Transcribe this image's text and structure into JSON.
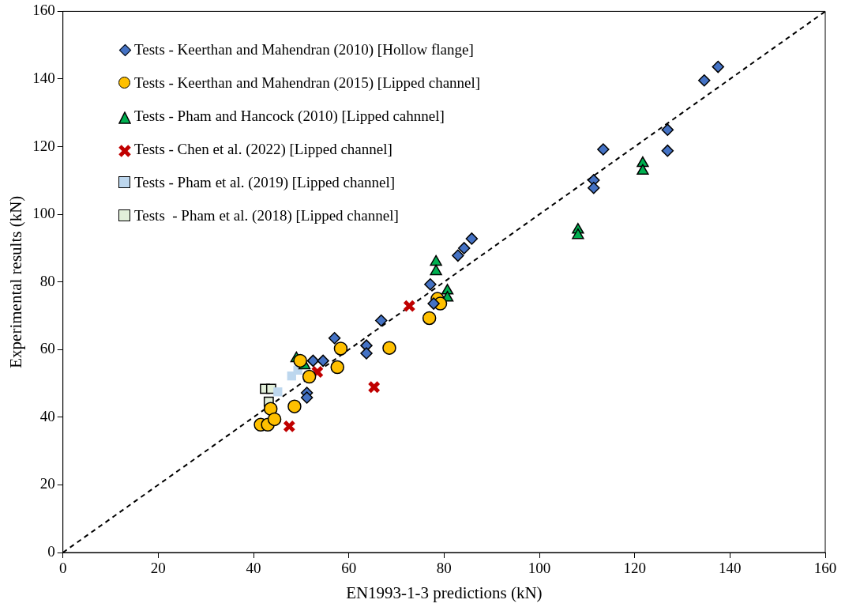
{
  "chart_data": {
    "type": "scatter",
    "xlabel": "EN1993-1-3 predictions (kN)",
    "ylabel": "Experimental results (kN)",
    "xlim": [
      0,
      160
    ],
    "ylim": [
      0,
      160
    ],
    "xticks": [
      0,
      20,
      40,
      60,
      80,
      100,
      120,
      140,
      160
    ],
    "yticks": [
      0,
      20,
      40,
      60,
      80,
      100,
      120,
      140,
      160
    ],
    "grid": false,
    "legend": "top left",
    "series": [
      {
        "name": "Tests - Keerthan and Mahendran (2010) [Hollow flange]",
        "color": "#4472c4",
        "marker": "diamond",
        "x": [
          137.5,
          134.6,
          126.9,
          126.9,
          113.4,
          111.4,
          111.4,
          85.8,
          84.2,
          82.9,
          77.1,
          77.8,
          66.8,
          57.0,
          63.7,
          63.7,
          52.5,
          54.6,
          51.2,
          51.2
        ],
        "values": [
          143.6,
          139.6,
          125.0,
          118.8,
          119.2,
          110.1,
          107.8,
          92.8,
          90.0,
          87.8,
          79.3,
          73.6,
          68.6,
          63.4,
          61.2,
          58.9,
          56.7,
          56.7,
          47.2,
          45.8
        ]
      },
      {
        "name": "Tests - Keerthan and Mahendran (2015) [Lipped channel]",
        "color": "#ffc000",
        "marker": "circle",
        "x": [
          78.6,
          79.2,
          76.9,
          58.3,
          68.5,
          57.6,
          49.8,
          51.7,
          48.6,
          43.6,
          41.5,
          43.0,
          44.4
        ],
        "values": [
          75.0,
          73.6,
          69.3,
          60.3,
          60.5,
          54.8,
          56.7,
          52.0,
          43.2,
          42.5,
          37.8,
          37.8,
          39.4
        ]
      },
      {
        "name": "Tests - Pham and Hancock (2010) [Lipped cahnnel]",
        "color": "#00b050",
        "marker": "triangle",
        "x": [
          121.7,
          121.7,
          108.1,
          108.1,
          78.3,
          78.3,
          80.7,
          80.7,
          49.0,
          50.7
        ],
        "values": [
          115.1,
          112.8,
          95.4,
          93.8,
          85.9,
          83.1,
          77.4,
          75.3,
          57.4,
          55.3
        ]
      },
      {
        "name": "Tests - Chen et al. (2022) [Lipped channel]",
        "color": "#c00000",
        "marker": "cross",
        "x": [
          47.5,
          53.4,
          65.3,
          72.7
        ],
        "values": [
          37.3,
          53.4,
          48.9,
          72.9
        ]
      },
      {
        "name": "Tests - Pham et al. (2019) [Lipped channel]",
        "color": "#bdd7ee",
        "marker": "square",
        "x": [
          48.0,
          49.3,
          45.1
        ],
        "values": [
          52.2,
          53.9,
          47.5
        ]
      },
      {
        "name": "Tests  - Pham et al. (2018) [Lipped channel]",
        "color": "#e2efda",
        "marker": "square",
        "x": [
          42.4,
          43.7,
          43.2
        ],
        "values": [
          48.4,
          48.4,
          44.6
        ]
      },
      {
        "type": "line",
        "color": "#000000",
        "line_style": "dashed",
        "marker": "none",
        "x": [
          0,
          160
        ],
        "values": [
          0,
          160
        ]
      }
    ]
  }
}
